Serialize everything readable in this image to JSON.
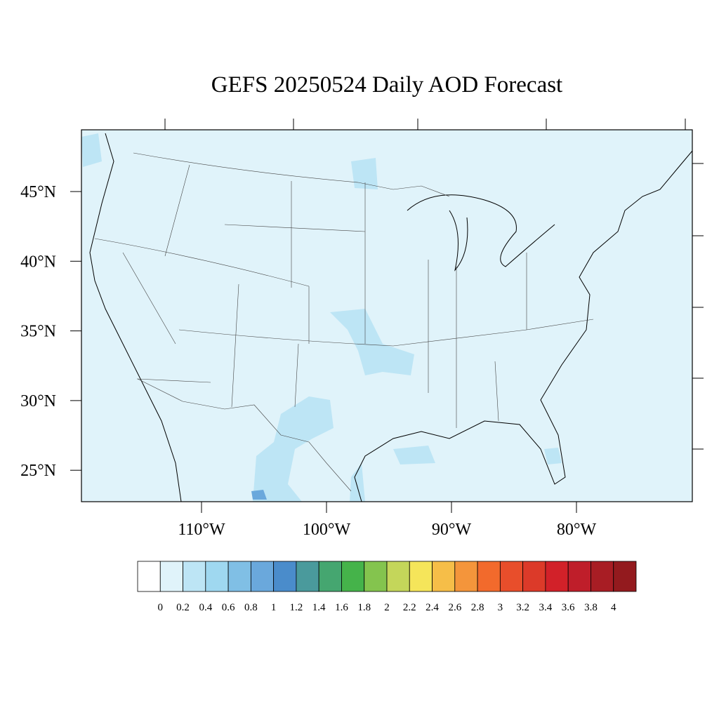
{
  "title": "GEFS 20250524 Daily AOD Forecast",
  "lat_labels": [
    "45°N",
    "40°N",
    "35°N",
    "30°N",
    "25°N"
  ],
  "lon_labels": [
    "110°W",
    "100°W",
    "90°W",
    "80°W"
  ],
  "colorbar": {
    "labels": [
      0,
      0.2,
      0.4,
      0.6,
      0.8,
      1,
      1.2,
      1.4,
      1.6,
      1.8,
      2,
      2.2,
      2.4,
      2.6,
      2.8,
      3,
      3.2,
      3.4,
      3.6,
      3.8,
      4
    ],
    "colors": [
      "#ffffff",
      "#e0f3fa",
      "#bde5f5",
      "#9fd8f0",
      "#80bfe5",
      "#6aa8dc",
      "#4a8ccb",
      "#4a9a9c",
      "#45a670",
      "#45b34a",
      "#84c44e",
      "#c4d65a",
      "#f5e55a",
      "#f6be48",
      "#f4953b",
      "#f26a2c",
      "#e84e2b",
      "#dc3a29",
      "#d22129",
      "#bf1e2a",
      "#a81d24",
      "#931a1e"
    ]
  }
}
